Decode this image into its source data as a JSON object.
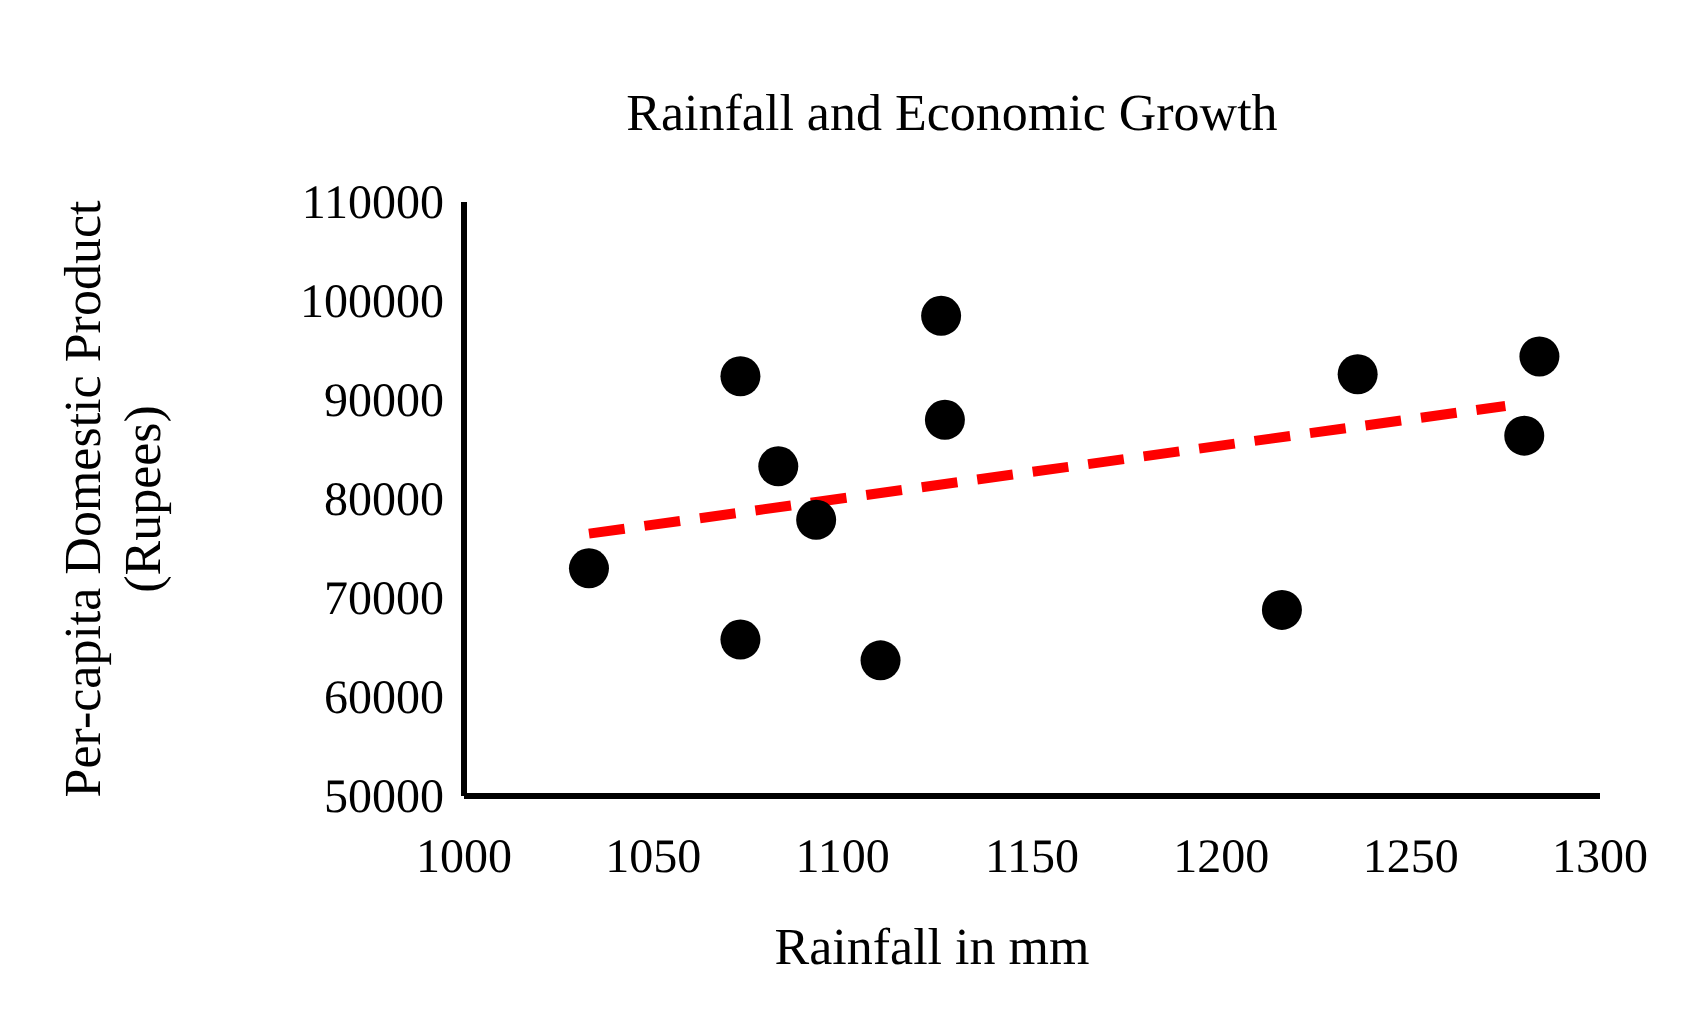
{
  "chart_data": {
    "type": "scatter",
    "title": "Rainfall and Economic Growth",
    "xlabel": "Rainfall in mm",
    "ylabel": "Per-capita Domestic Product (Rupees)",
    "xlim": [
      1000,
      1300
    ],
    "xticks": [
      1000,
      1050,
      1100,
      1150,
      1200,
      1250,
      1300
    ],
    "ylim": [
      50000,
      110000
    ],
    "yticks": [
      50000,
      60000,
      70000,
      80000,
      90000,
      100000,
      110000
    ],
    "grid": false,
    "series": [
      {
        "color": "#000000",
        "marker": "circle",
        "x": [
          1033,
          1073,
          1073,
          1083,
          1093,
          1110,
          1126,
          1127,
          1216,
          1236,
          1280,
          1284
        ],
        "values": [
          73000,
          92400,
          65800,
          83300,
          77900,
          63700,
          98500,
          88000,
          68800,
          92600,
          86400,
          94400
        ]
      },
      {
        "type": "line",
        "color": "#ff0000",
        "line_style": "dashed",
        "x": [
          1033,
          1275
        ],
        "values": [
          76500,
          89400
        ]
      }
    ]
  }
}
